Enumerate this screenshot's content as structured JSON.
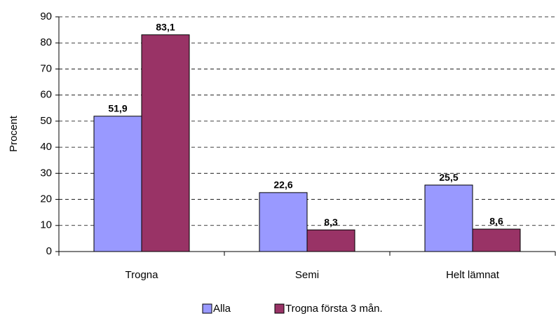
{
  "chart_data": {
    "type": "bar",
    "categories": [
      "Trogna",
      "Semi",
      "Helt lämnat"
    ],
    "series": [
      {
        "name": "Alla",
        "color": "#9999ff",
        "values": [
          51.9,
          22.6,
          25.5
        ],
        "value_labels": [
          "51,9",
          "22,6",
          "25,5"
        ]
      },
      {
        "name": "Trogna första 3 mån.",
        "color": "#993366",
        "values": [
          83.1,
          8.3,
          8.6
        ],
        "value_labels": [
          "83,1",
          "8,3",
          "8,6"
        ]
      }
    ],
    "y_label": "Procent",
    "ylim": [
      0,
      90
    ],
    "yticks": [
      0,
      10,
      20,
      30,
      40,
      50,
      60,
      70,
      80,
      90
    ],
    "grid": true,
    "legend": "bottom"
  }
}
